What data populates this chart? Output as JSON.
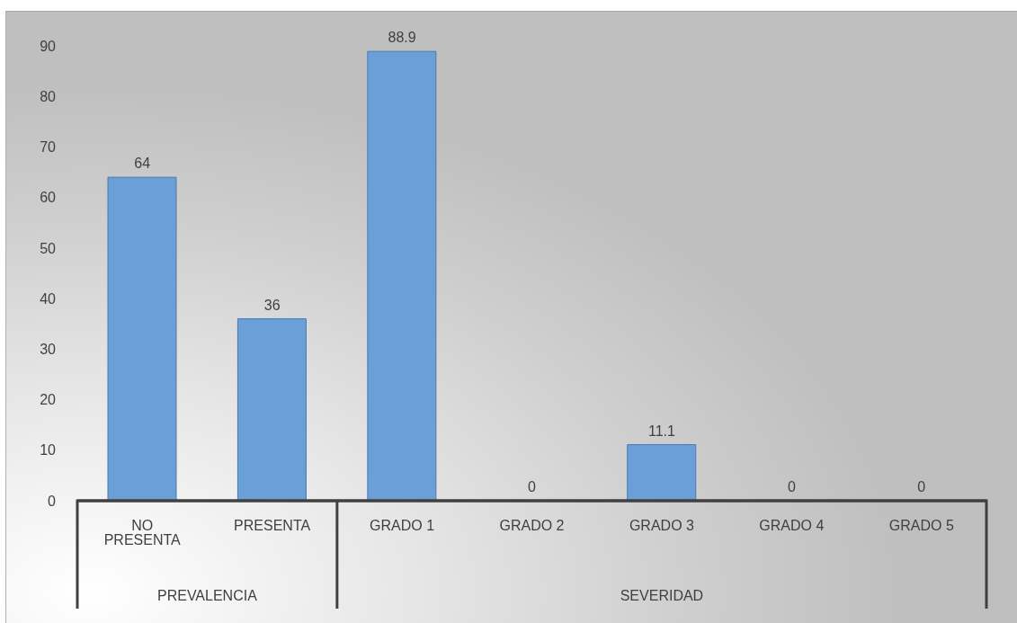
{
  "chart_data": {
    "type": "bar",
    "categories": [
      "NO PRESENTA",
      "PRESENTA",
      "GRADO 1",
      "GRADO 2",
      "GRADO 3",
      "GRADO 4",
      "GRADO 5"
    ],
    "values": [
      64,
      36,
      88.9,
      0,
      11.1,
      0,
      0
    ],
    "color": "#6a9fd8",
    "ylim": [
      0,
      90
    ],
    "yticks": [
      0,
      10,
      20,
      30,
      40,
      50,
      60,
      70,
      80,
      90
    ],
    "data_labels": true,
    "annotations": [
      "PREVALENCIA",
      "SEVERIDAD"
    ]
  }
}
